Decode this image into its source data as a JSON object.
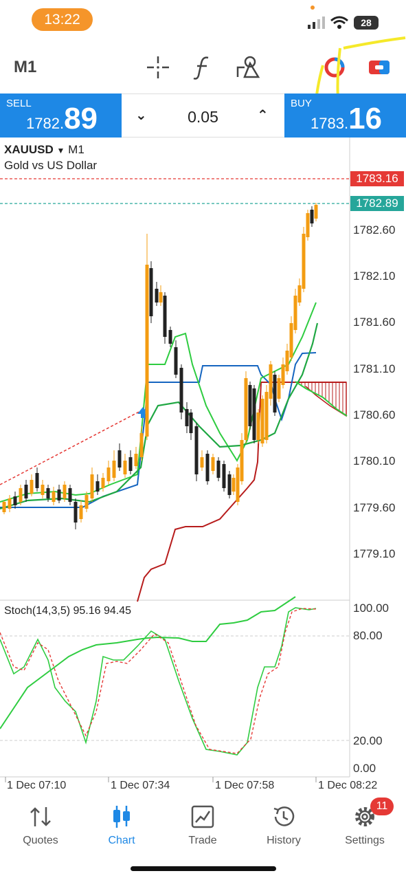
{
  "status": {
    "time": "13:22",
    "battery": "28"
  },
  "toolbar": {
    "timeframe": "M1",
    "icons": [
      "crosshair-icon",
      "function-icon",
      "objects-icon",
      "color-scheme-icon",
      "one-click-trading-icon"
    ]
  },
  "trade": {
    "sell_label": "SELL",
    "sell_price_small": "1782.",
    "sell_price_big": "89",
    "buy_label": "BUY",
    "buy_price_small": "1783.",
    "buy_price_big": "16",
    "volume": "0.05",
    "colors": {
      "panel": "#1e88e5"
    }
  },
  "chart": {
    "symbol": "XAUUSD",
    "timeframe": "M1",
    "description": "Gold vs US Dollar",
    "ask_tag": "1783.16",
    "bid_tag": "1782.89",
    "price_axis": [
      "1782.60",
      "1782.10",
      "1781.60",
      "1781.10",
      "1780.60",
      "1780.10",
      "1779.60",
      "1779.10"
    ],
    "stoch_label": "Stoch(14,3,5) 95.16 94.45",
    "stoch_axis": [
      "100.00",
      "80.00",
      "20.00",
      "0.00"
    ],
    "time_axis": [
      "1 Dec 07:10",
      "1 Dec 07:34",
      "1 Dec 07:58",
      "1 Dec 08:22"
    ],
    "colors": {
      "ask": "#e53935",
      "bid": "#26a69a",
      "bull": "#f39c12",
      "bear": "#222222",
      "cloud_up": "#2ecc40",
      "cloud_down": "#b71c1c",
      "kijun": "#1565c0"
    }
  },
  "chart_data": {
    "type": "line",
    "title": "XAUUSD M1",
    "y_range": [
      1779.0,
      1783.4
    ],
    "stochastic": {
      "k": 95.16,
      "d": 94.45,
      "range": [
        0,
        100
      ]
    }
  },
  "nav": {
    "items": [
      {
        "label": "Quotes",
        "icon": "quotes-icon"
      },
      {
        "label": "Chart",
        "icon": "chart-icon"
      },
      {
        "label": "Trade",
        "icon": "trade-icon"
      },
      {
        "label": "History",
        "icon": "history-icon"
      },
      {
        "label": "Settings",
        "icon": "settings-icon"
      }
    ],
    "settings_badge": "11"
  }
}
